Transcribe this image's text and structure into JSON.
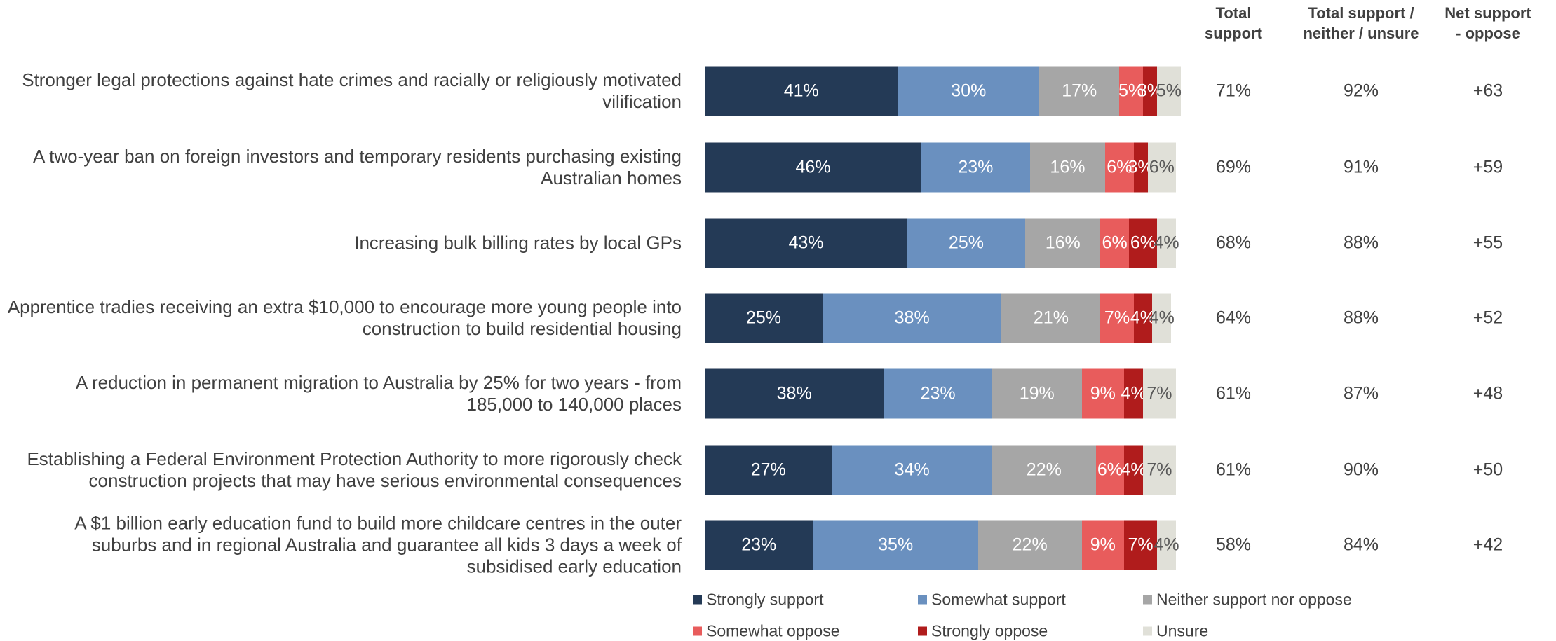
{
  "chart_data": {
    "type": "stacked-bar",
    "categories": [
      "Stronger legal protections against hate crimes and racially or religiously motivated vilification",
      "A two-year ban on foreign investors and temporary residents purchasing existing Australian homes",
      "Increasing bulk billing rates by local GPs",
      "Apprentice tradies receiving an extra $10,000 to encourage more young people into construction to build residential housing",
      "A reduction in permanent migration to Australia by 25% for two years - from 185,000 to 140,000 places",
      "Establishing a Federal Environment Protection Authority to more rigorously check construction projects that may have serious environmental consequences",
      "A $1 billion early education fund to build more childcare centres in the outer suburbs and in regional Australia and guarantee all kids 3 days a week of subsidised early education"
    ],
    "series": [
      {
        "name": "Strongly support",
        "color": "#243a56",
        "label_color": "#ffffff",
        "values": [
          41,
          46,
          43,
          25,
          38,
          27,
          23
        ],
        "value_labels": [
          "41%",
          "46%",
          "43%",
          "25%",
          "38%",
          "27%",
          "23%"
        ]
      },
      {
        "name": "Somewhat support",
        "color": "#6a90bf",
        "label_color": "#ffffff",
        "values": [
          30,
          23,
          25,
          38,
          23,
          34,
          35
        ],
        "value_labels": [
          "30%",
          "23%",
          "25%",
          "38%",
          "23%",
          "34%",
          "35%"
        ]
      },
      {
        "name": "Neither support nor oppose",
        "color": "#a6a6a6",
        "label_color": "#ffffff",
        "values": [
          17,
          16,
          16,
          21,
          19,
          22,
          22
        ],
        "value_labels": [
          "17%",
          "16%",
          "16%",
          "21%",
          "19%",
          "22%",
          "22%"
        ]
      },
      {
        "name": "Somewhat oppose",
        "color": "#e85c5c",
        "label_color": "#ffffff",
        "values": [
          5,
          6,
          6,
          7,
          9,
          6,
          9
        ],
        "value_labels": [
          "5%",
          "6%",
          "6%",
          "7%",
          "9%",
          "6%",
          "9%"
        ]
      },
      {
        "name": "Strongly oppose",
        "color": "#b01c1c",
        "label_color": "#ffffff",
        "values": [
          3,
          3,
          6,
          4,
          4,
          4,
          7
        ],
        "value_labels": [
          "3%",
          "3%",
          "6%",
          "4%",
          "4%",
          "4%",
          "7%"
        ]
      },
      {
        "name": "Unsure",
        "color": "#e0e0d8",
        "label_color": "#595959",
        "values": [
          5,
          6,
          4,
          4,
          7,
          7,
          4
        ],
        "value_labels": [
          "5%",
          "6%",
          "4%",
          "4%",
          "7%",
          "7%",
          "4%"
        ]
      }
    ],
    "columns": [
      {
        "header": "Total support",
        "values": [
          71,
          69,
          68,
          64,
          61,
          61,
          58
        ],
        "value_labels": [
          "71%",
          "69%",
          "68%",
          "64%",
          "61%",
          "61%",
          "58%"
        ]
      },
      {
        "header": "Total support / neither / unsure",
        "values": [
          92,
          91,
          88,
          88,
          87,
          90,
          84
        ],
        "value_labels": [
          "92%",
          "91%",
          "88%",
          "88%",
          "87%",
          "90%",
          "84%"
        ]
      },
      {
        "header": "Net support - oppose",
        "values": [
          63,
          59,
          55,
          52,
          48,
          50,
          42
        ],
        "value_labels": [
          "+63",
          "+59",
          "+55",
          "+52",
          "+48",
          "+50",
          "+42"
        ]
      }
    ]
  }
}
